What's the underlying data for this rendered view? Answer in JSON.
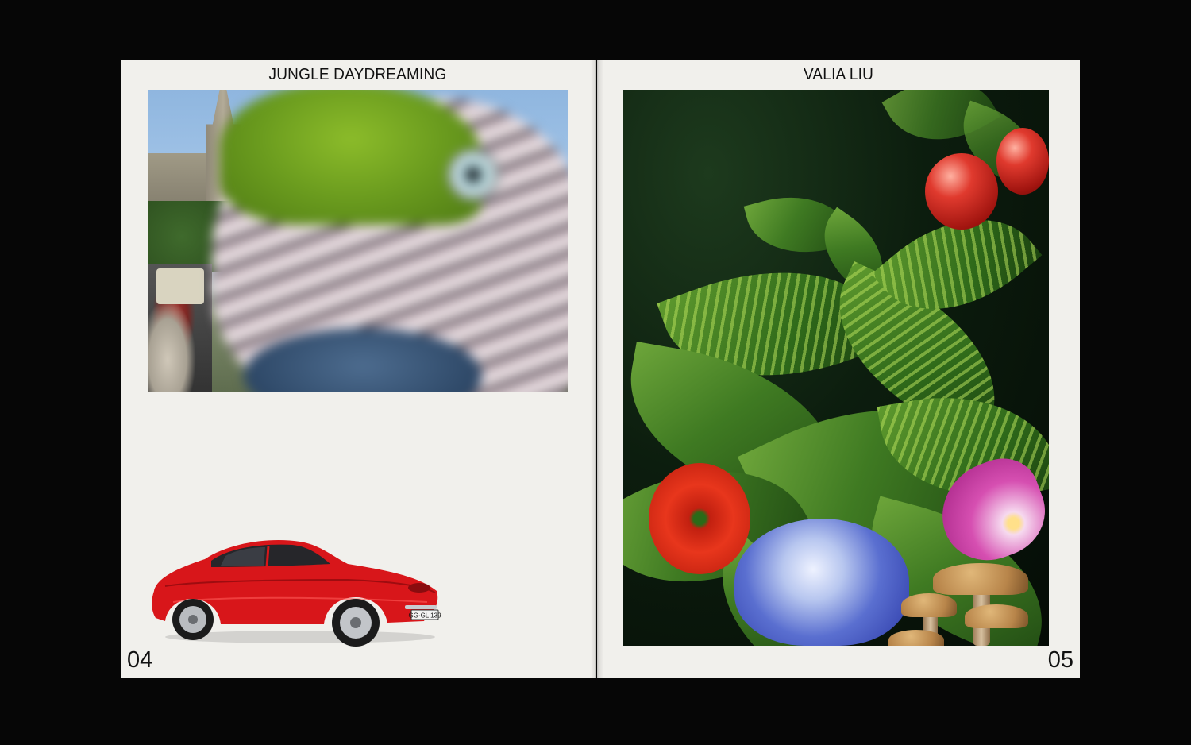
{
  "left_page": {
    "title": "JUNGLE DAYDREAMING",
    "page_number": "04"
  },
  "right_page": {
    "title": "VALIA LIU",
    "page_number": "05"
  },
  "car": {
    "plate": "GG·GL 139"
  },
  "colors": {
    "background": "#060606",
    "paper": "#f1f0ec",
    "text": "#111111",
    "car_red": "#d8161a"
  }
}
